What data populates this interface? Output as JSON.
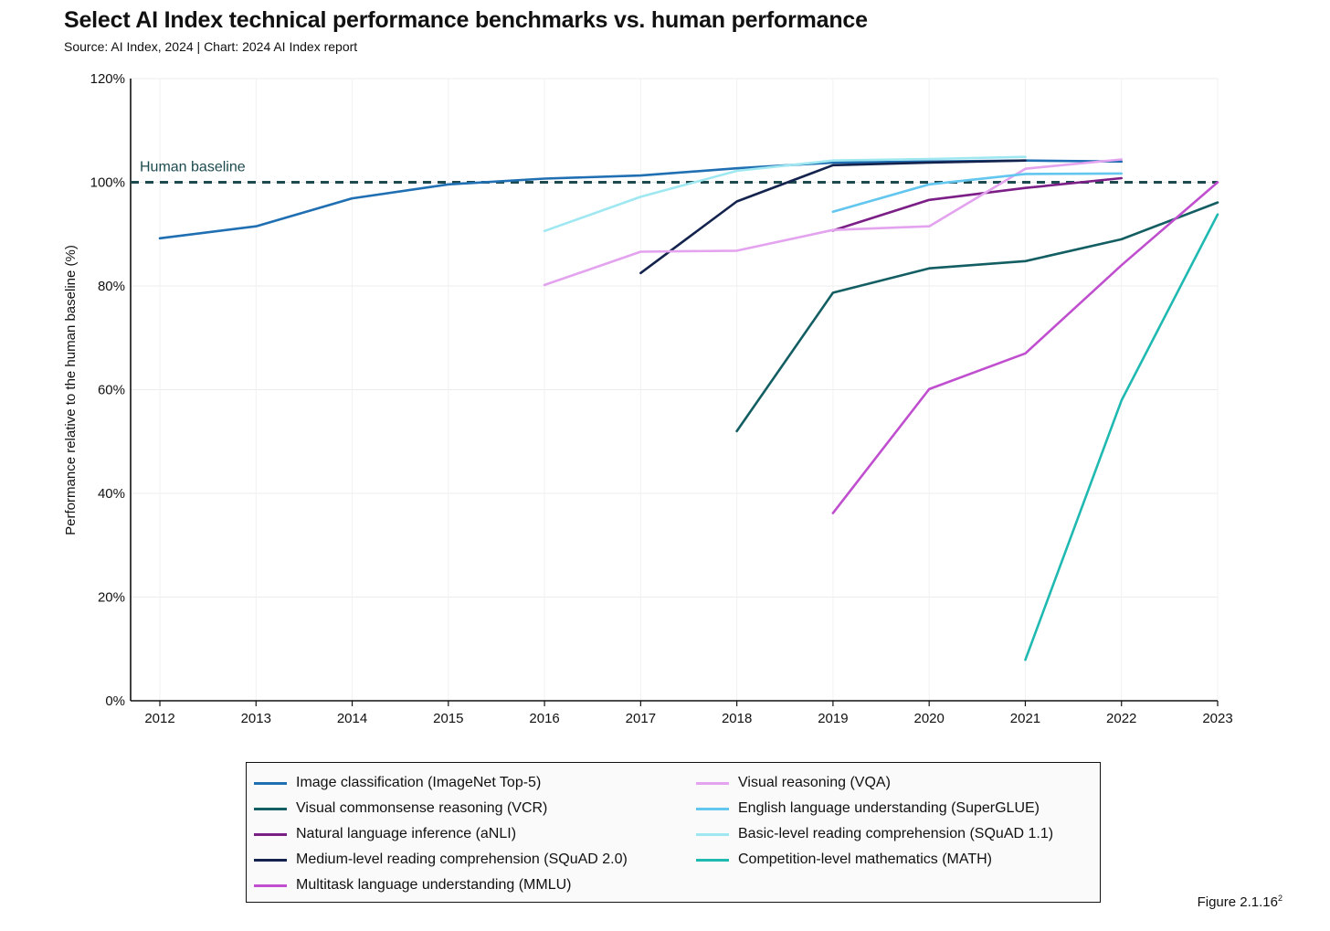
{
  "title": "Select AI Index technical performance benchmarks vs. human performance",
  "subtitle": "Source: AI Index, 2024 | Chart: 2024 AI Index report",
  "figure_note": "Figure 2.1.16",
  "figure_note_sup": "2",
  "chart_data": {
    "type": "line",
    "title": "Select AI Index technical performance benchmarks vs. human performance",
    "xlabel": "",
    "ylabel": "Performance relative to the human baseline (%)",
    "x": [
      2012,
      2013,
      2014,
      2015,
      2016,
      2017,
      2018,
      2019,
      2020,
      2021,
      2022,
      2023
    ],
    "x_tick_labels": [
      "2012",
      "2013",
      "2014",
      "2015",
      "2016",
      "2017",
      "2018",
      "2019",
      "2020",
      "2021",
      "2022",
      "2023"
    ],
    "ylim": [
      0,
      120
    ],
    "y_ticks": [
      0,
      20,
      40,
      60,
      80,
      100,
      120
    ],
    "y_tick_labels": [
      "0%",
      "20%",
      "40%",
      "60%",
      "80%",
      "100%",
      "120%"
    ],
    "grid": true,
    "legend_position": "bottom",
    "baseline": {
      "value": 100,
      "label": "Human baseline",
      "color": "#1d4a4e"
    },
    "series": [
      {
        "name": "Image classification (ImageNet Top-5)",
        "color": "#1f6fb2",
        "points": [
          [
            2012,
            89.2
          ],
          [
            2013,
            91.5
          ],
          [
            2014,
            96.9
          ],
          [
            2015,
            99.6
          ],
          [
            2016,
            100.7
          ],
          [
            2017,
            101.3
          ],
          [
            2018,
            102.7
          ],
          [
            2019,
            103.8
          ],
          [
            2020,
            104.0
          ],
          [
            2021,
            104.2
          ],
          [
            2022,
            104.0
          ]
        ]
      },
      {
        "name": "Visual commonsense reasoning (VCR)",
        "color": "#135e62",
        "points": [
          [
            2018,
            52.0
          ],
          [
            2019,
            78.7
          ],
          [
            2020,
            83.4
          ],
          [
            2021,
            84.8
          ],
          [
            2022,
            89.0
          ],
          [
            2023,
            96.1
          ]
        ]
      },
      {
        "name": "Natural language inference (aNLI)",
        "color": "#7b1f87",
        "points": [
          [
            2019,
            90.7
          ],
          [
            2020,
            96.6
          ],
          [
            2021,
            98.9
          ],
          [
            2022,
            100.8
          ]
        ]
      },
      {
        "name": "Medium-level reading comprehension (SQuAD 2.0)",
        "color": "#14234d",
        "points": [
          [
            2017,
            82.5
          ],
          [
            2018,
            96.3
          ],
          [
            2019,
            103.3
          ],
          [
            2020,
            103.8
          ],
          [
            2021,
            104.2
          ]
        ]
      },
      {
        "name": "Multitask language understanding (MMLU)",
        "color": "#c04fcf",
        "points": [
          [
            2019,
            36.2
          ],
          [
            2020,
            60.1
          ],
          [
            2021,
            67.0
          ],
          [
            2022,
            84.0
          ],
          [
            2023,
            100.0
          ]
        ]
      },
      {
        "name": "Visual reasoning (VQA)",
        "color": "#e3a3ee",
        "points": [
          [
            2016,
            80.2
          ],
          [
            2017,
            86.6
          ],
          [
            2018,
            86.8
          ],
          [
            2019,
            90.8
          ],
          [
            2020,
            91.5
          ],
          [
            2021,
            102.6
          ],
          [
            2022,
            104.4
          ]
        ]
      },
      {
        "name": "English language understanding (SuperGLUE)",
        "color": "#62c6ef",
        "points": [
          [
            2019,
            94.3
          ],
          [
            2020,
            99.6
          ],
          [
            2021,
            101.6
          ],
          [
            2022,
            101.7
          ]
        ]
      },
      {
        "name": "Basic-level reading comprehension (SQuAD 1.1)",
        "color": "#9fe8f2",
        "points": [
          [
            2016,
            90.6
          ],
          [
            2017,
            97.2
          ],
          [
            2018,
            102.2
          ],
          [
            2019,
            104.2
          ],
          [
            2020,
            104.5
          ],
          [
            2021,
            104.9
          ]
        ]
      },
      {
        "name": "Competition-level mathematics (MATH)",
        "color": "#1fb9b1",
        "points": [
          [
            2021,
            7.9
          ],
          [
            2022,
            57.9
          ],
          [
            2023,
            93.8
          ]
        ]
      }
    ]
  }
}
